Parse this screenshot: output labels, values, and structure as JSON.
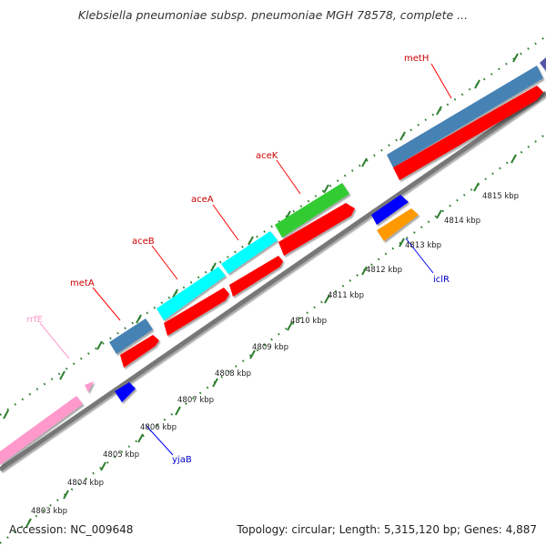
{
  "title": "Klebsiella pneumoniae subsp. pneumoniae MGH 78578, complete ...",
  "footer": {
    "accession": "Accession: NC_009648",
    "summary": "Topology: circular; Length: 5,315,120 bp; Genes: 4,887"
  },
  "colors": {
    "background": "#ffffff",
    "backbone": "#888888",
    "tick_dots": "#2e7d2e",
    "cds_forward": "#ff0000",
    "cds_reverse": "#0000ff",
    "gene_steelblue": "#4682b4",
    "gene_cyan": "#00ffff",
    "gene_green": "#33cc33",
    "gene_pink": "#ff99cc",
    "gene_orange": "#ff9900",
    "label_red": "#cc0000",
    "label_blue": "#0000cc",
    "label_pink": "#ff99cc"
  },
  "scale_ticks": [
    "4803 kbp",
    "4804 kbp",
    "4805 kbp",
    "4806 kbp",
    "4807 kbp",
    "4808 kbp",
    "4809 kbp",
    "4810 kbp",
    "4811 kbp",
    "4812 kbp",
    "4813 kbp",
    "4814 kbp",
    "4815 kbp"
  ],
  "gene_labels": {
    "metH": "metH",
    "aceK": "aceK",
    "aceA": "aceA",
    "aceB": "aceB",
    "metA": "metA",
    "rrfE": "rrfE",
    "iclR": "iclR",
    "yjaB": "yjaB"
  }
}
